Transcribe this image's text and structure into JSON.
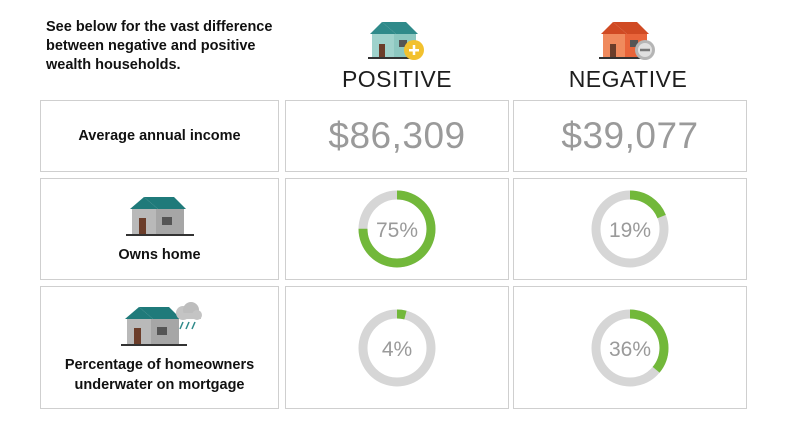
{
  "intro": "See below for the vast difference between negative and positive wealth households.",
  "columns": {
    "positive": {
      "title": "POSITIVE",
      "icon": "house-plus-icon",
      "accent": "#f2c12e"
    },
    "negative": {
      "title": "NEGATIVE",
      "icon": "house-minus-icon",
      "accent": "#e8643a"
    }
  },
  "rows": {
    "income": {
      "label": "Average annual income",
      "positive": "$86,309",
      "negative": "$39,077"
    },
    "owns_home": {
      "label": "Owns home",
      "icon": "house-icon",
      "positive": {
        "value": 75,
        "text": "75%"
      },
      "negative": {
        "value": 19,
        "text": "19%"
      }
    },
    "underwater": {
      "label_line1": "Percentage of homeowners",
      "label_line2": "underwater on mortgage",
      "icon": "house-storm-icon",
      "positive": {
        "value": 4,
        "text": "4%"
      },
      "negative": {
        "value": 36,
        "text": "36%"
      }
    }
  },
  "colors": {
    "ring_fill": "#72b83a",
    "ring_track": "#d6d6d6",
    "value_text": "#9a9a9a",
    "border": "#cfcfcf"
  }
}
